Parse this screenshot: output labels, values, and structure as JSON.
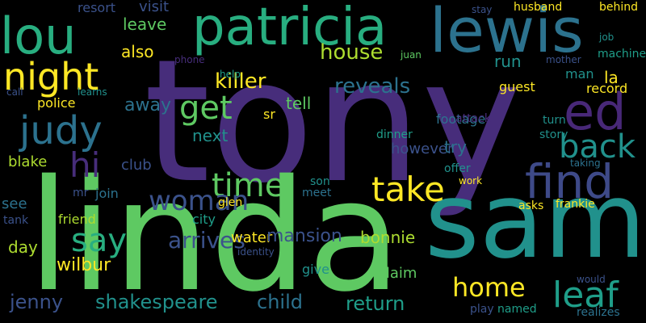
{
  "words": [
    "tony",
    "linda",
    "sam",
    "patricia",
    "lewis",
    "lou",
    "ed",
    "find",
    "night",
    "judy",
    "take",
    "time",
    "get",
    "back",
    "hi",
    "leaf",
    "say",
    "woman",
    "home",
    "killer",
    "house",
    "reveals",
    "arrives",
    "shakespeare",
    "child",
    "return",
    "jenny",
    "wilbur",
    "also",
    "leave",
    "visit",
    "resort",
    "club",
    "blake",
    "police",
    "day",
    "see",
    "tank",
    "friend",
    "join",
    "city",
    "water",
    "mansion",
    "bonnie",
    "give",
    "claim",
    "meet",
    "son",
    "glen",
    "next",
    "away",
    "tell",
    "sr",
    "however",
    "dinner",
    "footage",
    "attack",
    "try",
    "offer",
    "work",
    "asks",
    "frankie",
    "guest",
    "run",
    "la",
    "man",
    "record",
    "story",
    "turn",
    "taking",
    "husband",
    "behind",
    "machine",
    "mother",
    "juan",
    "phone",
    "help",
    "call",
    "learns",
    "stay",
    "job",
    "would",
    "named",
    "play",
    "realizes",
    "mr",
    "identity"
  ]
}
